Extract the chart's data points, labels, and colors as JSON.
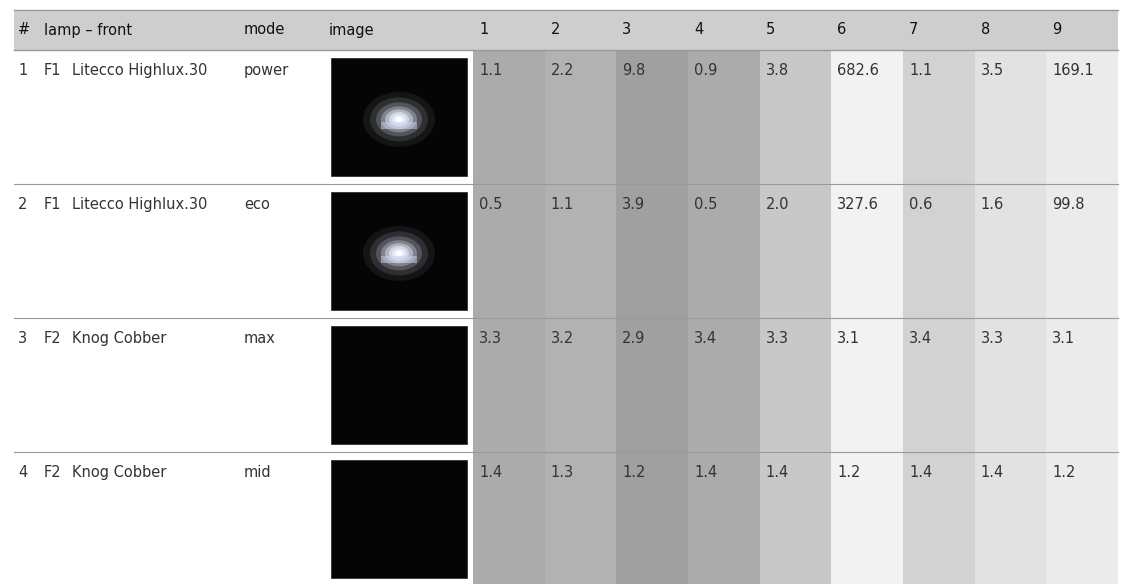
{
  "rows": [
    {
      "num": "1",
      "id": "F1",
      "name": "Litecco Highlux.30",
      "mode": "power",
      "values": [
        "1.1",
        "2.2",
        "9.8",
        "0.9",
        "3.8",
        "682.6",
        "1.1",
        "3.5",
        "169.1"
      ]
    },
    {
      "num": "2",
      "id": "F1",
      "name": "Litecco Highlux.30",
      "mode": "eco",
      "values": [
        "0.5",
        "1.1",
        "3.9",
        "0.5",
        "2.0",
        "327.6",
        "0.6",
        "1.6",
        "99.8"
      ]
    },
    {
      "num": "3",
      "id": "F2",
      "name": "Knog Cobber",
      "mode": "max",
      "values": [
        "3.3",
        "3.2",
        "2.9",
        "3.4",
        "3.3",
        "3.1",
        "3.4",
        "3.3",
        "3.1"
      ]
    },
    {
      "num": "4",
      "id": "F2",
      "name": "Knog Cobber",
      "mode": "mid",
      "values": [
        "1.4",
        "1.3",
        "1.2",
        "1.4",
        "1.4",
        "1.2",
        "1.4",
        "1.4",
        "1.2"
      ]
    }
  ],
  "header_labels": [
    "#",
    "",
    "lamp – front",
    "mode",
    "image",
    "1",
    "2",
    "3",
    "4",
    "5",
    "6",
    "7",
    "8",
    "9"
  ],
  "num_col_bg": [
    "#ababab",
    "#b2b2b2",
    "#a0a0a0",
    "#ababab",
    "#c8c8c8",
    "#f2f2f2",
    "#d2d2d2",
    "#e2e2e2",
    "#ebebeb"
  ],
  "header_bg": "#cecece",
  "row_bg_left": "#ffffff",
  "border_color": "#999999",
  "text_color": "#333333",
  "figsize": [
    11.32,
    5.84
  ],
  "dpi": 100
}
